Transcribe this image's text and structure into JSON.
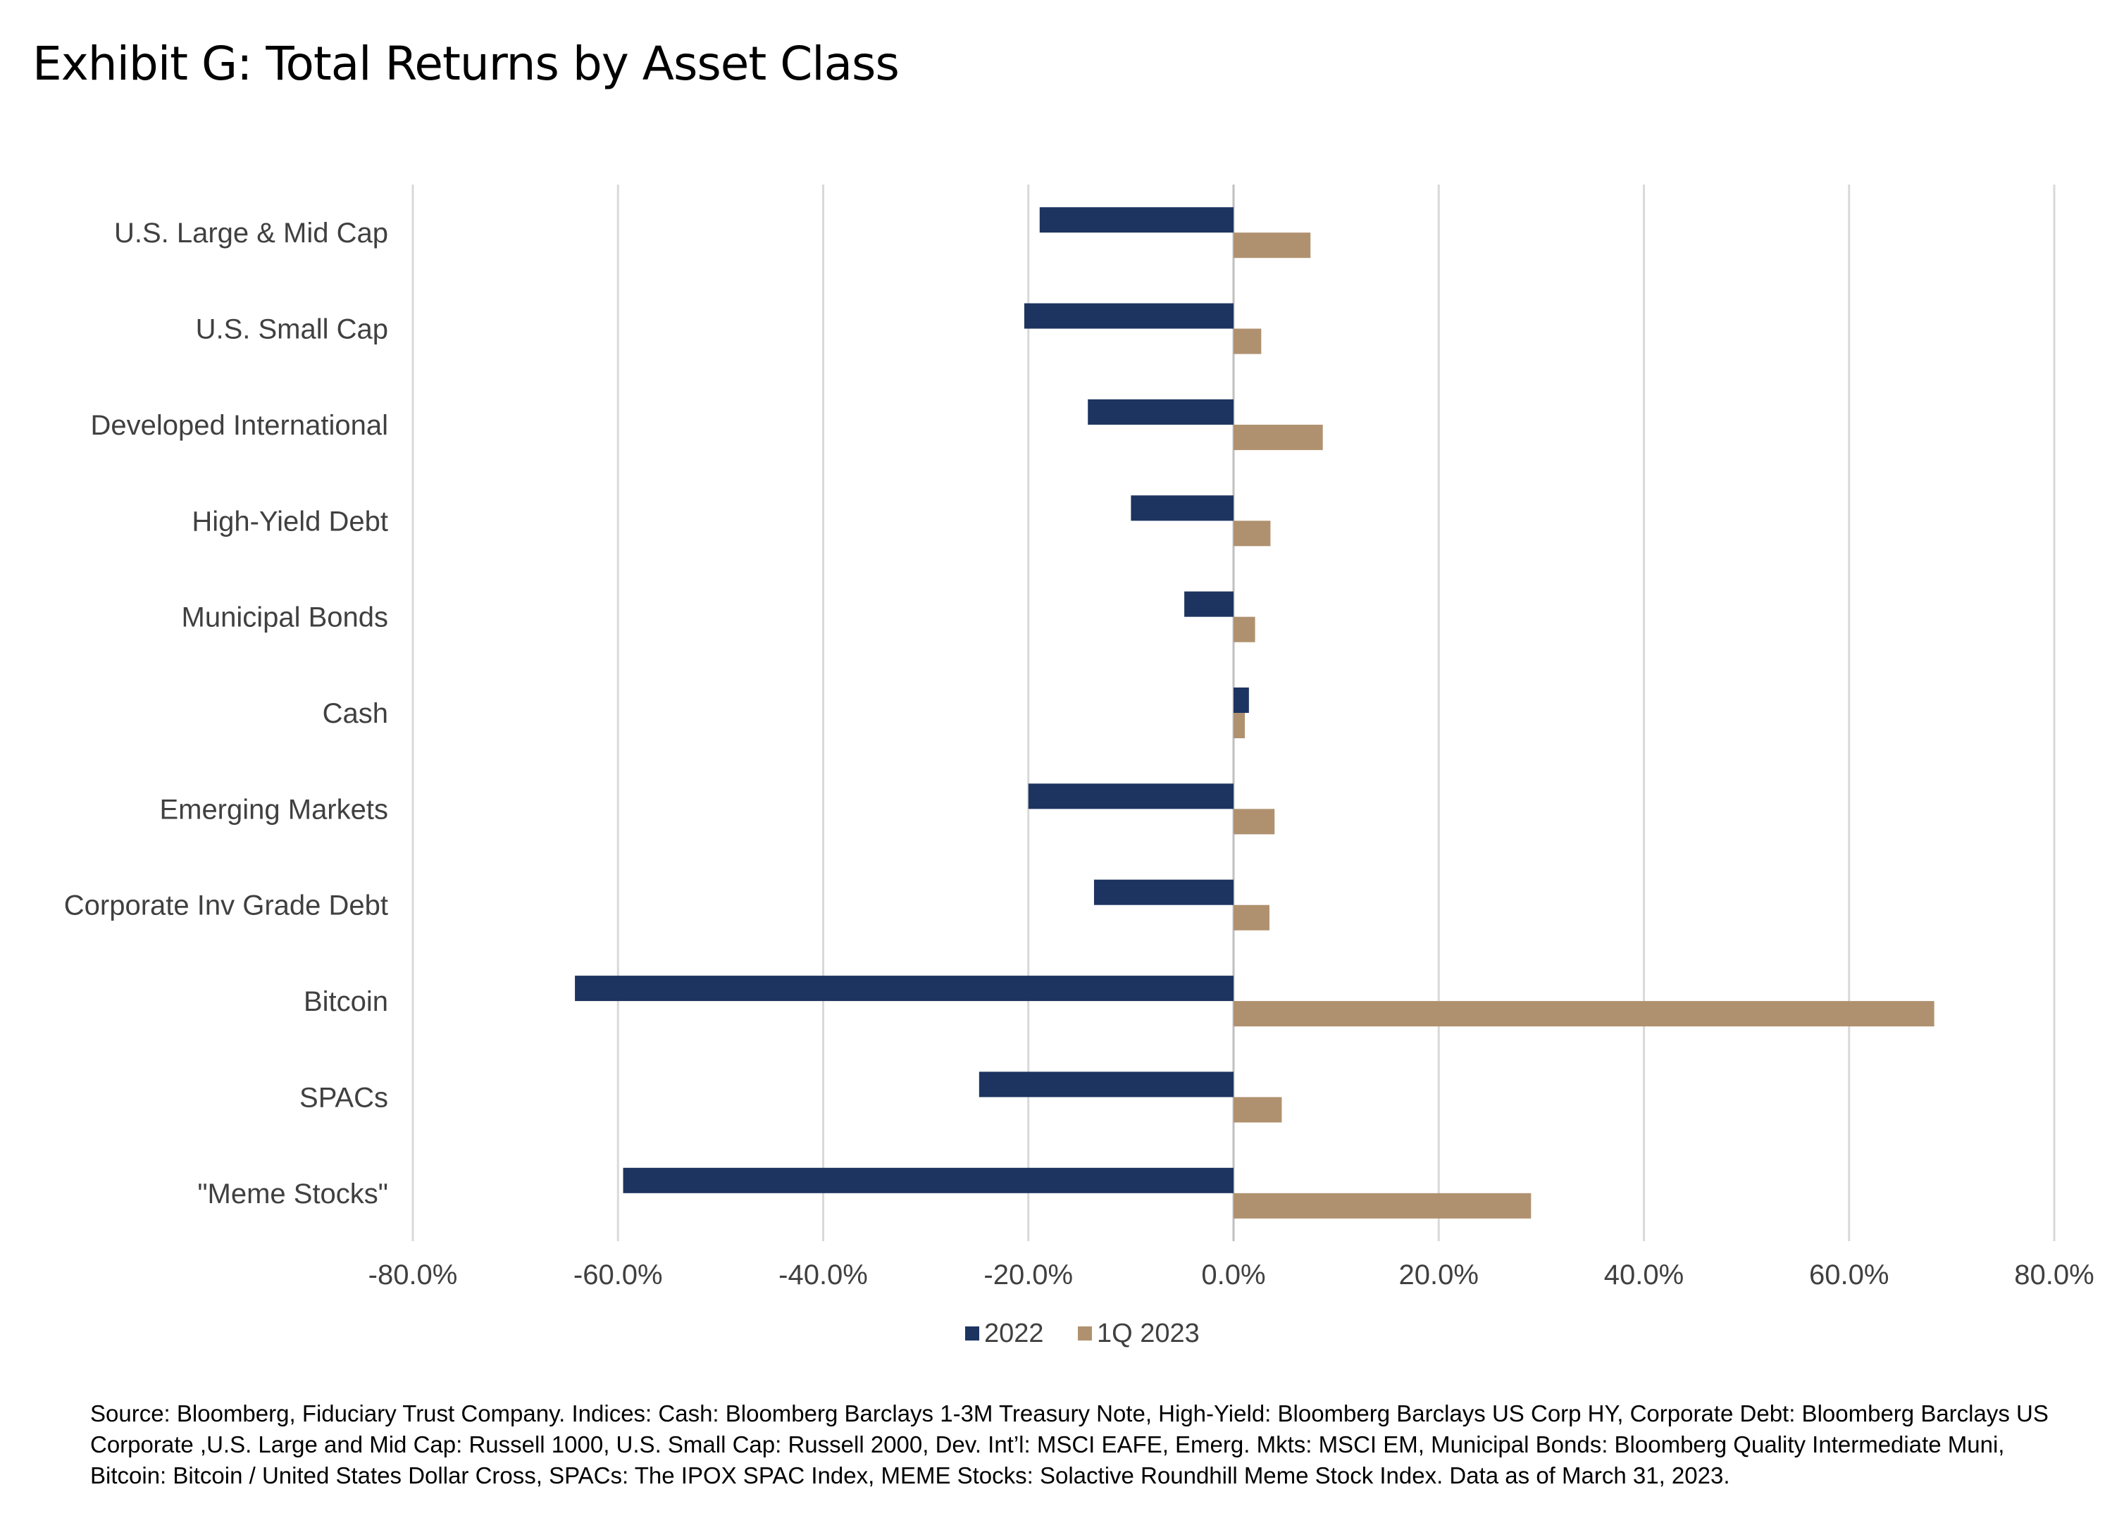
{
  "title": "Exhibit G: Total Returns by Asset Class",
  "source_note": "Source: Bloomberg, Fiduciary Trust Company.  Indices: Cash: Bloomberg Barclays 1-3M Treasury Note, High-Yield: Bloomberg Barclays US Corp HY, Corporate Debt: Bloomberg Barclays US Corporate ,U.S. Large and Mid Cap: Russell 1000, U.S. Small Cap: Russell 2000, Dev. Int’l: MSCI EAFE, Emerg. Mkts: MSCI EM, Municipal Bonds: Bloomberg Quality Intermediate Muni, Bitcoin: Bitcoin / United States Dollar Cross, SPACs: The IPOX SPAC Index, MEME Stocks: Solactive Roundhill Meme Stock Index. Data as of March 31, 2023.",
  "colors": {
    "series_2022": "#1d3461",
    "series_1q2023": "#b0916f",
    "grid": "#d9d9d9",
    "label_text": "#404040"
  },
  "chart_data": {
    "type": "bar",
    "orientation": "horizontal",
    "categories": [
      "U.S. Large & Mid Cap",
      "U.S. Small Cap",
      "Developed International",
      "High-Yield Debt",
      "Municipal Bonds",
      "Cash",
      "Emerging Markets",
      "Corporate Inv Grade Debt",
      "Bitcoin",
      "SPACs",
      "\"Meme Stocks\""
    ],
    "series": [
      {
        "name": "2022",
        "values": [
          -18.9,
          -20.4,
          -14.2,
          -10.0,
          -4.8,
          1.5,
          -20.0,
          -13.6,
          -64.2,
          -24.8,
          -59.5
        ]
      },
      {
        "name": "1Q 2023",
        "values": [
          7.5,
          2.7,
          8.7,
          3.6,
          2.1,
          1.1,
          4.0,
          3.5,
          68.3,
          4.7,
          29.0
        ]
      }
    ],
    "xlim": [
      -80,
      80
    ],
    "x_ticks": [
      -80,
      -60,
      -40,
      -20,
      0,
      20,
      40,
      60,
      80
    ],
    "x_tick_labels": [
      "-80.0%",
      "-60.0%",
      "-40.0%",
      "-20.0%",
      "0.0%",
      "20.0%",
      "40.0%",
      "60.0%",
      "80.0%"
    ],
    "grid": "vertical",
    "legend": "bottom",
    "xlabel": "",
    "ylabel": ""
  }
}
